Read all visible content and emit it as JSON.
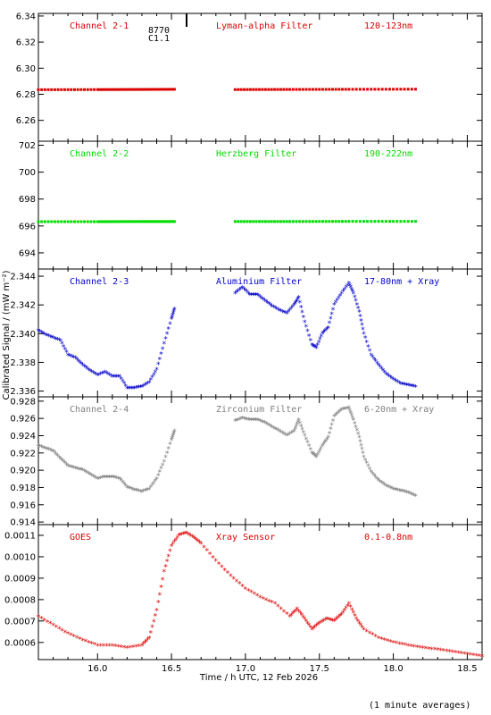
{
  "x_label": "Time / h UTC, 12 Feb 2026",
  "y_label": "Calibrated Signal / (mW m⁻²)",
  "footer_note": "(1 minute averages)",
  "corner_marks": [
    "8770",
    "C1.1"
  ],
  "chart_data": [
    {
      "type": "scatter",
      "channel": "Channel 2-1",
      "filter": "Lyman-alpha Filter",
      "band": "120-123nm",
      "color": "#dd0000",
      "xlim": [
        15.6,
        18.6
      ],
      "ylim": [
        6.244,
        6.342
      ],
      "yticks": [
        6.26,
        6.28,
        6.3,
        6.32,
        6.34
      ],
      "series": [
        {
          "x": [
            15.6,
            16.0,
            16.3,
            16.52
          ],
          "y": [
            6.2835,
            6.2836,
            6.2837,
            6.2838
          ]
        },
        {
          "x": [
            16.93,
            17.3,
            17.7,
            18.15
          ],
          "y": [
            6.2836,
            6.2837,
            6.2838,
            6.2839
          ]
        }
      ]
    },
    {
      "type": "scatter",
      "channel": "Channel 2-2",
      "filter": "Herzberg Filter",
      "band": "190-222nm",
      "color": "#00dd00",
      "xlim": [
        15.6,
        18.6
      ],
      "ylim": [
        692.8,
        702.3
      ],
      "yticks": [
        694,
        696,
        698,
        700,
        702
      ],
      "series": [
        {
          "x": [
            15.6,
            16.0,
            16.3,
            16.52
          ],
          "y": [
            696.32,
            696.32,
            696.33,
            696.33
          ]
        },
        {
          "x": [
            16.93,
            17.3,
            17.7,
            18.15
          ],
          "y": [
            696.33,
            696.33,
            696.34,
            696.34
          ]
        }
      ]
    },
    {
      "type": "scatter",
      "channel": "Channel 2-3",
      "filter": "Aluminium Filter",
      "band": "17-80nm + Xray",
      "color": "#0000cc",
      "xlim": [
        15.6,
        18.6
      ],
      "ylim": [
        2.3356,
        2.3445
      ],
      "yticks": [
        2.336,
        2.338,
        2.34,
        2.342,
        2.344
      ],
      "series": [
        {
          "x": [
            15.6,
            15.65,
            15.7,
            15.75,
            15.8,
            15.85,
            15.9,
            15.95,
            16.0,
            16.05,
            16.1,
            16.15,
            16.2,
            16.25,
            16.3,
            16.35,
            16.4,
            16.45,
            16.5,
            16.52
          ],
          "y": [
            2.3402,
            2.3399,
            2.3397,
            2.3395,
            2.3385,
            2.3383,
            2.3378,
            2.3374,
            2.3371,
            2.3373,
            2.337,
            2.337,
            2.3362,
            2.3362,
            2.3363,
            2.3366,
            2.3375,
            2.3393,
            2.341,
            2.3417
          ]
        },
        {
          "x": [
            16.93,
            16.98,
            17.03,
            17.08,
            17.13,
            17.18,
            17.23,
            17.28,
            17.33,
            17.36,
            17.4,
            17.45,
            17.48,
            17.52,
            17.56,
            17.6,
            17.65,
            17.7,
            17.73,
            17.77,
            17.8,
            17.85,
            17.9,
            17.95,
            18.0,
            18.05,
            18.1,
            18.15
          ],
          "y": [
            2.3428,
            2.3432,
            2.3427,
            2.3427,
            2.3423,
            2.3419,
            2.3416,
            2.3414,
            2.342,
            2.3425,
            2.3408,
            2.3392,
            2.339,
            2.34,
            2.3404,
            2.342,
            2.3428,
            2.3435,
            2.3428,
            2.3415,
            2.34,
            2.3385,
            2.3378,
            2.3372,
            2.3368,
            2.3365,
            2.3364,
            2.3363
          ]
        }
      ]
    },
    {
      "type": "scatter",
      "channel": "Channel 2-4",
      "filter": "Zirconium Filter",
      "band": "6-20nm + Xray",
      "color": "#808080",
      "xlim": [
        15.6,
        18.6
      ],
      "ylim": [
        0.9137,
        0.9285
      ],
      "yticks": [
        0.914,
        0.916,
        0.918,
        0.92,
        0.922,
        0.924,
        0.926,
        0.928
      ],
      "series": [
        {
          "x": [
            15.6,
            15.65,
            15.7,
            15.75,
            15.8,
            15.85,
            15.9,
            15.95,
            16.0,
            16.05,
            16.1,
            16.15,
            16.2,
            16.25,
            16.3,
            16.35,
            16.4,
            16.45,
            16.5,
            16.52
          ],
          "y": [
            0.9228,
            0.9225,
            0.9222,
            0.9213,
            0.9205,
            0.9202,
            0.92,
            0.9195,
            0.919,
            0.9192,
            0.9192,
            0.919,
            0.918,
            0.9177,
            0.9175,
            0.9178,
            0.919,
            0.921,
            0.9235,
            0.9245
          ]
        },
        {
          "x": [
            16.93,
            16.98,
            17.03,
            17.08,
            17.13,
            17.18,
            17.23,
            17.28,
            17.33,
            17.36,
            17.4,
            17.45,
            17.48,
            17.52,
            17.56,
            17.6,
            17.65,
            17.7,
            17.73,
            17.77,
            17.8,
            17.85,
            17.9,
            17.95,
            18.0,
            18.05,
            18.1,
            18.15
          ],
          "y": [
            0.9257,
            0.926,
            0.9258,
            0.9258,
            0.9255,
            0.925,
            0.9245,
            0.924,
            0.9245,
            0.9258,
            0.924,
            0.922,
            0.9215,
            0.9228,
            0.9238,
            0.9262,
            0.927,
            0.9272,
            0.9258,
            0.9238,
            0.9215,
            0.9198,
            0.9188,
            0.9182,
            0.9178,
            0.9176,
            0.9174,
            0.917
          ]
        }
      ]
    },
    {
      "type": "scatter",
      "channel": "GOES",
      "filter": "Xray Sensor",
      "band": "0.1-0.8nm",
      "color": "#dd0000",
      "xlim": [
        15.6,
        18.6
      ],
      "ylim": [
        0.00052,
        0.00115
      ],
      "yticks": [
        0.0006,
        0.0007,
        0.0008,
        0.0009,
        0.001,
        0.0011
      ],
      "ytick_labels": [
        "0.0006",
        "0.0007",
        "0.0008",
        "0.0009",
        "0.0010",
        "0.0011"
      ],
      "xticks": [
        16.0,
        16.5,
        17.0,
        17.5,
        18.0,
        18.5
      ],
      "series": [
        {
          "x": [
            15.6,
            15.7,
            15.8,
            15.9,
            16.0,
            16.1,
            16.2,
            16.3,
            16.35,
            16.4,
            16.45,
            16.5,
            16.55,
            16.6,
            16.65,
            16.7,
            16.8,
            16.9,
            17.0,
            17.1,
            17.2,
            17.3,
            17.35,
            17.4,
            17.45,
            17.5,
            17.55,
            17.6,
            17.65,
            17.7,
            17.75,
            17.8,
            17.9,
            18.0,
            18.1,
            18.2,
            18.3,
            18.4,
            18.5,
            18.6
          ],
          "y": [
            0.00072,
            0.00068,
            0.00064,
            0.00061,
            0.000585,
            0.000585,
            0.000575,
            0.000585,
            0.00062,
            0.00075,
            0.00093,
            0.00105,
            0.0011,
            0.00111,
            0.00109,
            0.00106,
            0.00098,
            0.00091,
            0.00085,
            0.00081,
            0.00078,
            0.00072,
            0.000755,
            0.00071,
            0.00066,
            0.00069,
            0.00071,
            0.0007,
            0.00073,
            0.00078,
            0.00071,
            0.00066,
            0.00062,
            0.0006,
            0.000585,
            0.000575,
            0.000565,
            0.000555,
            0.000545,
            0.000535
          ]
        }
      ]
    }
  ]
}
